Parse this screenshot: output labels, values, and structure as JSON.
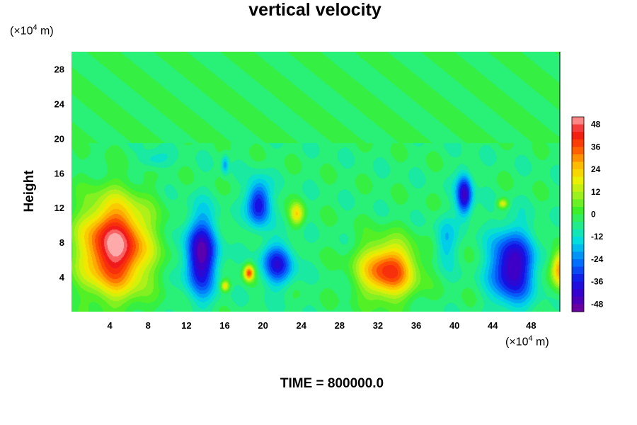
{
  "chart_data": {
    "type": "heatmap",
    "title": "vertical velocity",
    "ylabel": "Height",
    "x_unit": "(×10",
    "x_unit_exp": "4",
    "x_unit_tail": " m)",
    "y_unit": "(×10",
    "y_unit_exp": "4",
    "y_unit_tail": " m)",
    "footer": "TIME = 800000.0",
    "xlim": [
      0,
      51
    ],
    "ylim": [
      0,
      30
    ],
    "x_ticks": [
      "4",
      "8",
      "12",
      "16",
      "20",
      "24",
      "28",
      "32",
      "36",
      "40",
      "44",
      "48"
    ],
    "y_ticks": [
      "4",
      "8",
      "12",
      "16",
      "20",
      "24",
      "28"
    ],
    "colorbar": {
      "range": [
        -52,
        52
      ],
      "tick_labels": [
        "48",
        "36",
        "24",
        "12",
        "0",
        "-12",
        "-24",
        "-36",
        "-48"
      ],
      "levels": [
        52,
        48,
        44,
        40,
        36,
        32,
        28,
        24,
        20,
        16,
        12,
        8,
        4,
        0,
        -4,
        -8,
        -12,
        -16,
        -20,
        -24,
        -28,
        -32,
        -36,
        -40,
        -44,
        -48,
        -52
      ]
    },
    "features": [
      {
        "x": 4.5,
        "y": 7.5,
        "value": 52,
        "rx": 3.8,
        "ry": 5.8
      },
      {
        "x": 33,
        "y": 4.8,
        "value": 40,
        "rx": 3.2,
        "ry": 3.5
      },
      {
        "x": 13.5,
        "y": 6.5,
        "value": -48,
        "rx": 1.8,
        "ry": 4.8
      },
      {
        "x": 19.5,
        "y": 12.5,
        "value": -40,
        "rx": 1.3,
        "ry": 2.8
      },
      {
        "x": 21.5,
        "y": 5.5,
        "value": -36,
        "rx": 1.8,
        "ry": 2.6
      },
      {
        "x": 41,
        "y": 13.5,
        "value": -44,
        "rx": 0.9,
        "ry": 2.6
      },
      {
        "x": 46,
        "y": 5.2,
        "value": -48,
        "rx": 2.4,
        "ry": 4.4
      },
      {
        "x": 23.5,
        "y": 11.3,
        "value": 20,
        "rx": 0.8,
        "ry": 1.4
      },
      {
        "x": 18.5,
        "y": 4.5,
        "value": 36,
        "rx": 0.6,
        "ry": 1.0
      },
      {
        "x": 51,
        "y": 5.0,
        "value": 32,
        "rx": 1.0,
        "ry": 2.4
      },
      {
        "x": 16.0,
        "y": 17.0,
        "value": -20,
        "rx": 0.4,
        "ry": 1.2
      },
      {
        "x": 8.5,
        "y": 17.5,
        "value": -14,
        "rx": 1.6,
        "ry": 1.2
      },
      {
        "x": 45,
        "y": 12.5,
        "value": 18,
        "rx": 0.6,
        "ry": 0.6
      },
      {
        "x": 16,
        "y": 3,
        "value": 22,
        "rx": 0.5,
        "ry": 0.7
      },
      {
        "x": 39,
        "y": 8,
        "value": -18,
        "rx": 1.2,
        "ry": 3
      }
    ],
    "background_value": -4
  }
}
